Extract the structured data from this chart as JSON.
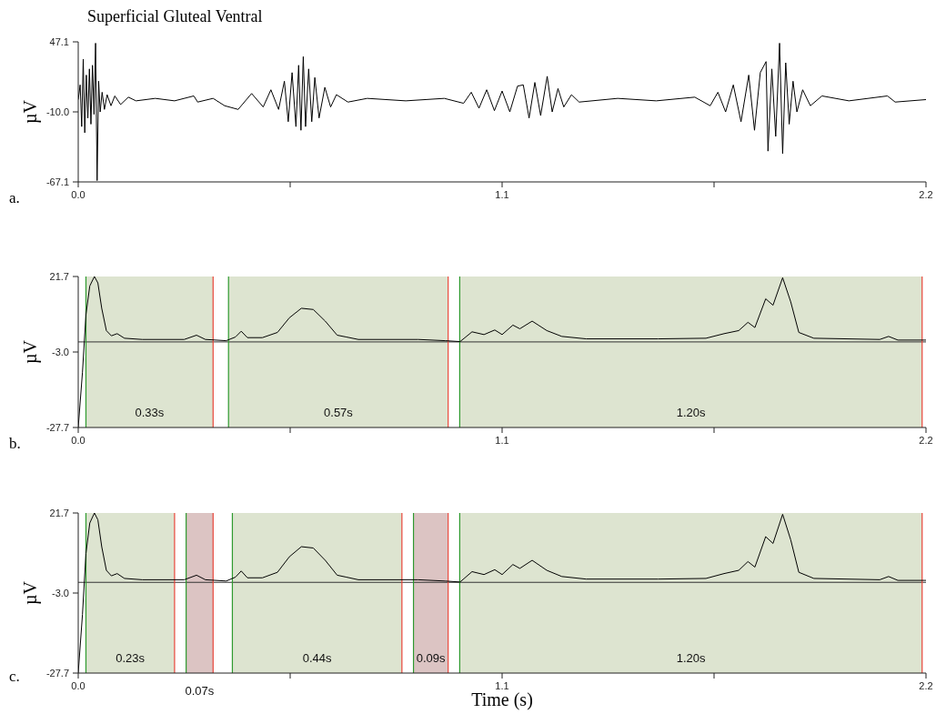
{
  "chart_data": [
    {
      "type": "line",
      "title": "Superficial Gluteal Ventral",
      "ylabel": "µV",
      "annotations": [
        "a."
      ],
      "x": [
        0,
        0.005,
        0.009,
        0.013,
        0.017,
        0.021,
        0.025,
        0.029,
        0.033,
        0.037,
        0.041,
        0.045,
        0.049,
        0.053,
        0.057,
        0.062,
        0.068,
        0.075,
        0.085,
        0.095,
        0.11,
        0.13,
        0.15,
        0.2,
        0.25,
        0.3,
        0.31,
        0.35,
        0.38,
        0.415,
        0.45,
        0.48,
        0.5,
        0.52,
        0.535,
        0.545,
        0.555,
        0.565,
        0.572,
        0.578,
        0.584,
        0.59,
        0.598,
        0.606,
        0.614,
        0.625,
        0.64,
        0.655,
        0.67,
        0.7,
        0.75,
        0.85,
        0.95,
        1.0,
        1.02,
        1.04,
        1.06,
        1.08,
        1.1,
        1.12,
        1.14,
        1.155,
        1.17,
        1.185,
        1.2,
        1.217,
        1.23,
        1.245,
        1.26,
        1.28,
        1.3,
        1.4,
        1.5,
        1.6,
        1.64,
        1.66,
        1.68,
        1.7,
        1.72,
        1.74,
        1.755,
        1.77,
        1.785,
        1.79,
        1.8,
        1.81,
        1.82,
        1.828,
        1.836,
        1.845,
        1.855,
        1.865,
        1.88,
        1.9,
        1.93,
        2.0,
        2.1,
        2.12,
        2.2
      ],
      "series": [
        {
          "color": "#000000",
          "values": [
            0,
            12,
            -22,
            33,
            -27,
            20,
            -15,
            25,
            -20,
            28,
            -12,
            46,
            -66,
            15,
            -10,
            6,
            -8,
            4,
            -5,
            3,
            -4,
            2,
            -1,
            1,
            -1,
            3,
            -2,
            1,
            -5,
            -8,
            5,
            -6,
            8,
            -8,
            15,
            -18,
            22,
            -22,
            28,
            -25,
            35,
            -22,
            25,
            -18,
            18,
            -15,
            10,
            -6,
            4,
            -2,
            1,
            -1,
            1,
            -3,
            6,
            -7,
            8,
            -9,
            7,
            -10,
            11,
            12,
            -15,
            14,
            -13,
            19,
            -10,
            9,
            -6,
            4,
            -2,
            1,
            -1,
            2,
            -5,
            6,
            -10,
            12,
            -18,
            20,
            -25,
            22,
            31,
            -42,
            25,
            -30,
            46,
            -44,
            30,
            -20,
            15,
            -10,
            8,
            -5,
            3,
            -1,
            3,
            -2,
            0
          ]
        }
      ],
      "xlim": [
        0,
        2.2
      ],
      "xticks": [
        {
          "value": 0,
          "label": "0.0"
        },
        {
          "value": 0.55,
          "label": null
        },
        {
          "value": 1.1,
          "label": "1.1"
        },
        {
          "value": 1.65,
          "label": null
        },
        {
          "value": 2.2,
          "label": "2.2"
        }
      ],
      "ylim": [
        -67.1,
        47.1
      ],
      "yticks": [
        {
          "value": -67.1,
          "label": "-67.1"
        },
        {
          "value": -10,
          "label": "-10.0"
        },
        {
          "value": 47.1,
          "label": "47.1"
        }
      ],
      "grid": false
    },
    {
      "type": "line",
      "ylabel": "µV",
      "annotations": [
        "b."
      ],
      "x": [
        0,
        0.011,
        0.02,
        0.03,
        0.042,
        0.051,
        0.061,
        0.073,
        0.086,
        0.101,
        0.12,
        0.166,
        0.275,
        0.307,
        0.33,
        0.384,
        0.408,
        0.423,
        0.439,
        0.478,
        0.517,
        0.548,
        0.579,
        0.61,
        0.641,
        0.672,
        0.696,
        0.727,
        0.882,
        0.952,
        0.991,
        1.022,
        1.053,
        1.081,
        1.1,
        1.128,
        1.146,
        1.178,
        1.216,
        1.255,
        1.318,
        1.505,
        1.629,
        1.676,
        1.714,
        1.738,
        1.756,
        1.784,
        1.803,
        1.828,
        1.849,
        1.87,
        1.909,
        2.08,
        2.103,
        2.127,
        2.2
      ],
      "series": [
        {
          "color": "#000000",
          "values": [
            -27.7,
            -9.6,
            9.2,
            18.6,
            21.7,
            19.6,
            11.3,
            4.0,
            2.3,
            3.0,
            1.5,
            1.1,
            1.1,
            2.5,
            1.1,
            0.7,
            1.9,
            3.8,
            1.7,
            1.7,
            3.4,
            8.2,
            11.3,
            10.9,
            7.1,
            2.5,
            1.9,
            1.1,
            1.1,
            0.7,
            0.4,
            3.6,
            2.7,
            4.2,
            2.7,
            5.8,
            4.6,
            7.1,
            4.0,
            2.1,
            1.3,
            1.3,
            1.5,
            3.0,
            4.0,
            6.7,
            5.0,
            14.4,
            12.3,
            21.3,
            13.4,
            3.4,
            1.5,
            1.1,
            2.1,
            0.9,
            0.9
          ]
        }
      ],
      "bands": [
        {
          "axis": "x",
          "from": 0.02,
          "to": 0.35,
          "label": "0.33s",
          "color": "#dde4d0"
        },
        {
          "axis": "x",
          "from": 0.39,
          "to": 0.96,
          "label": "0.57s",
          "color": "#dde4d0"
        },
        {
          "axis": "x",
          "from": 0.99,
          "to": 2.19,
          "label": "1.20s",
          "color": "#dde4d0"
        }
      ],
      "ref_lines": [
        {
          "axis": "y",
          "value": 0.3,
          "color": "#333333"
        },
        {
          "axis": "x",
          "value": 0.02,
          "color": "#2e9a2e"
        },
        {
          "axis": "x",
          "value": 0.35,
          "color": "#e8463a"
        },
        {
          "axis": "x",
          "value": 0.39,
          "color": "#2e9a2e"
        },
        {
          "axis": "x",
          "value": 0.96,
          "color": "#e8463a"
        },
        {
          "axis": "x",
          "value": 0.99,
          "color": "#2e9a2e"
        },
        {
          "axis": "x",
          "value": 2.19,
          "color": "#e8463a"
        }
      ],
      "xlim": [
        0,
        2.2
      ],
      "xticks": [
        {
          "value": 0,
          "label": "0.0"
        },
        {
          "value": 0.55,
          "label": null
        },
        {
          "value": 1.1,
          "label": "1.1"
        },
        {
          "value": 1.65,
          "label": null
        },
        {
          "value": 2.2,
          "label": "2.2"
        }
      ],
      "ylim": [
        -27.7,
        21.7
      ],
      "yticks": [
        {
          "value": -27.7,
          "label": "-27.7"
        },
        {
          "value": -3,
          "label": "-3.0"
        },
        {
          "value": 21.7,
          "label": "21.7"
        }
      ],
      "grid": false
    },
    {
      "type": "line",
      "ylabel": "µV",
      "xlabel": "Time (s)",
      "annotations": [
        "c."
      ],
      "x": [
        0,
        0.011,
        0.02,
        0.03,
        0.042,
        0.051,
        0.061,
        0.073,
        0.086,
        0.101,
        0.12,
        0.166,
        0.275,
        0.307,
        0.33,
        0.384,
        0.408,
        0.423,
        0.439,
        0.478,
        0.517,
        0.548,
        0.579,
        0.61,
        0.641,
        0.672,
        0.696,
        0.727,
        0.882,
        0.952,
        0.991,
        1.022,
        1.053,
        1.081,
        1.1,
        1.128,
        1.146,
        1.178,
        1.216,
        1.255,
        1.318,
        1.505,
        1.629,
        1.676,
        1.714,
        1.738,
        1.756,
        1.784,
        1.803,
        1.828,
        1.849,
        1.87,
        1.909,
        2.08,
        2.103,
        2.127,
        2.2
      ],
      "series": [
        {
          "color": "#000000",
          "values": [
            -27.7,
            -9.6,
            9.2,
            18.6,
            21.7,
            19.6,
            11.3,
            4.0,
            2.3,
            3.0,
            1.5,
            1.1,
            1.1,
            2.5,
            1.1,
            0.7,
            1.9,
            3.8,
            1.7,
            1.7,
            3.4,
            8.2,
            11.3,
            10.9,
            7.1,
            2.5,
            1.9,
            1.1,
            1.1,
            0.7,
            0.4,
            3.6,
            2.7,
            4.2,
            2.7,
            5.8,
            4.6,
            7.1,
            4.0,
            2.1,
            1.3,
            1.3,
            1.5,
            3.0,
            4.0,
            6.7,
            5.0,
            14.4,
            12.3,
            21.3,
            13.4,
            3.4,
            1.5,
            1.1,
            2.1,
            0.9,
            0.9
          ]
        }
      ],
      "bands": [
        {
          "axis": "x",
          "from": 0.02,
          "to": 0.25,
          "label": "0.23s",
          "color": "#dde4d0"
        },
        {
          "axis": "x",
          "from": 0.28,
          "to": 0.35,
          "label": "0.07s",
          "color": "#dcc4c3"
        },
        {
          "axis": "x",
          "from": 0.4,
          "to": 0.84,
          "label": "0.44s",
          "color": "#dde4d0"
        },
        {
          "axis": "x",
          "from": 0.87,
          "to": 0.96,
          "label": "0.09s",
          "color": "#dcc4c3"
        },
        {
          "axis": "x",
          "from": 0.99,
          "to": 2.19,
          "label": "1.20s",
          "color": "#dde4d0"
        }
      ],
      "ref_lines": [
        {
          "axis": "y",
          "value": 0.3,
          "color": "#333333"
        },
        {
          "axis": "x",
          "value": 0.02,
          "color": "#2e9a2e"
        },
        {
          "axis": "x",
          "value": 0.25,
          "color": "#e8463a"
        },
        {
          "axis": "x",
          "value": 0.28,
          "color": "#2e9a2e"
        },
        {
          "axis": "x",
          "value": 0.35,
          "color": "#e8463a"
        },
        {
          "axis": "x",
          "value": 0.4,
          "color": "#2e9a2e"
        },
        {
          "axis": "x",
          "value": 0.84,
          "color": "#e8463a"
        },
        {
          "axis": "x",
          "value": 0.87,
          "color": "#2e9a2e"
        },
        {
          "axis": "x",
          "value": 0.96,
          "color": "#e8463a"
        },
        {
          "axis": "x",
          "value": 0.99,
          "color": "#2e9a2e"
        },
        {
          "axis": "x",
          "value": 2.19,
          "color": "#e8463a"
        }
      ],
      "xlim": [
        0,
        2.2
      ],
      "xticks": [
        {
          "value": 0,
          "label": "0.0"
        },
        {
          "value": 0.55,
          "label": null
        },
        1.1,
        {
          "value": 1.65,
          "label": null
        },
        2.2
      ],
      "ylim": [
        -27.7,
        21.7
      ],
      "yticks": [
        {
          "value": -27.7,
          "label": "-27.7"
        },
        {
          "value": -3,
          "label": "-3.0"
        },
        {
          "value": 21.7,
          "label": "21.7"
        }
      ],
      "grid": false
    }
  ]
}
